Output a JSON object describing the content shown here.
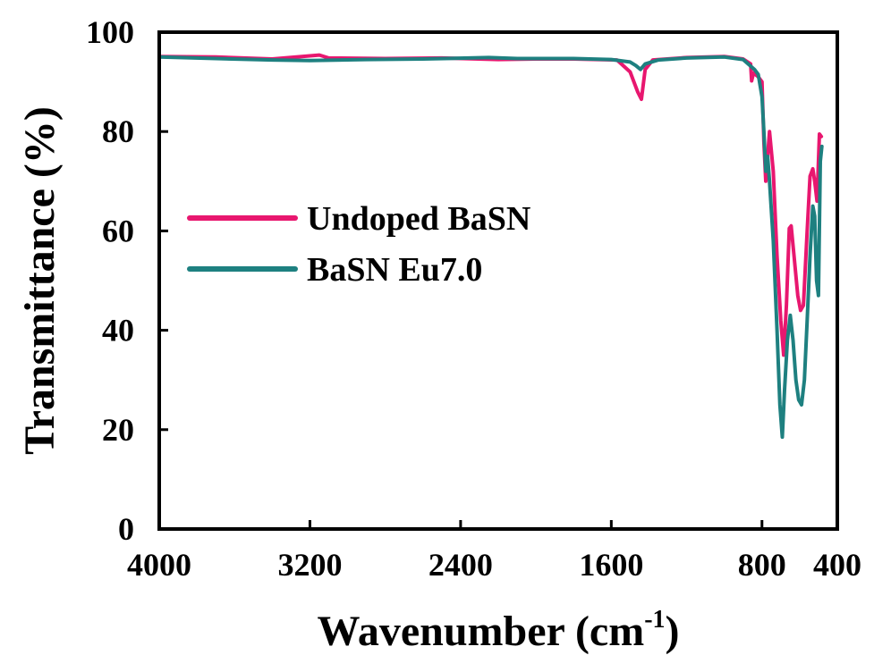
{
  "chart_data": {
    "type": "line",
    "xlabel": "Wavenumber (cm",
    "xlabel_sup": "-1",
    "xlabel_end": ")",
    "ylabel": "Transmittance (%)",
    "xlim": [
      4000,
      400
    ],
    "ylim": [
      0,
      100
    ],
    "x_ticks": [
      4000,
      3200,
      2400,
      1600,
      800,
      400
    ],
    "x_tick_labels": [
      "4000",
      "3200",
      "2400",
      "1600",
      "800",
      "400"
    ],
    "y_ticks": [
      0,
      20,
      40,
      60,
      80,
      100
    ],
    "y_tick_labels": [
      "0",
      "20",
      "40",
      "60",
      "80",
      "100"
    ],
    "legend_position": "center-left",
    "grid": false,
    "series": [
      {
        "name": "Undoped BaSN",
        "color": "#e8176f",
        "points": [
          [
            4000,
            95.1
          ],
          [
            3700,
            95.0
          ],
          [
            3400,
            94.6
          ],
          [
            3150,
            95.4
          ],
          [
            3100,
            94.8
          ],
          [
            2800,
            94.7
          ],
          [
            2500,
            94.8
          ],
          [
            2200,
            94.5
          ],
          [
            2000,
            94.6
          ],
          [
            1800,
            94.6
          ],
          [
            1570,
            94.4
          ],
          [
            1500,
            92.0
          ],
          [
            1460,
            88.0
          ],
          [
            1440,
            86.5
          ],
          [
            1420,
            92.5
          ],
          [
            1380,
            94.4
          ],
          [
            1200,
            94.9
          ],
          [
            1000,
            95.1
          ],
          [
            900,
            94.6
          ],
          [
            860,
            93.6
          ],
          [
            855,
            90.2
          ],
          [
            845,
            91.8
          ],
          [
            820,
            91.0
          ],
          [
            800,
            90.0
          ],
          [
            790,
            78.0
          ],
          [
            780,
            70.0
          ],
          [
            760,
            80.0
          ],
          [
            740,
            72.0
          ],
          [
            720,
            55.0
          ],
          [
            700,
            42.0
          ],
          [
            685,
            35.0
          ],
          [
            670,
            45.0
          ],
          [
            655,
            60.5
          ],
          [
            645,
            61.0
          ],
          [
            630,
            55.0
          ],
          [
            610,
            47.0
          ],
          [
            595,
            44.0
          ],
          [
            580,
            45.0
          ],
          [
            560,
            60.0
          ],
          [
            545,
            71.0
          ],
          [
            530,
            72.5
          ],
          [
            520,
            70.0
          ],
          [
            508,
            66.0
          ],
          [
            495,
            79.5
          ],
          [
            485,
            79.0
          ]
        ]
      },
      {
        "name": "BaSN Eu7.0",
        "color": "#1e8080",
        "points": [
          [
            4000,
            95.0
          ],
          [
            3700,
            94.7
          ],
          [
            3400,
            94.4
          ],
          [
            3200,
            94.3
          ],
          [
            2900,
            94.5
          ],
          [
            2600,
            94.6
          ],
          [
            2250,
            94.9
          ],
          [
            2100,
            94.7
          ],
          [
            1800,
            94.7
          ],
          [
            1600,
            94.5
          ],
          [
            1500,
            94.0
          ],
          [
            1470,
            93.3
          ],
          [
            1445,
            92.5
          ],
          [
            1420,
            93.6
          ],
          [
            1350,
            94.4
          ],
          [
            1200,
            94.8
          ],
          [
            1000,
            95.0
          ],
          [
            900,
            94.5
          ],
          [
            840,
            92.5
          ],
          [
            820,
            91.5
          ],
          [
            800,
            87.0
          ],
          [
            790,
            80.0
          ],
          [
            780,
            72.0
          ],
          [
            770,
            75.0
          ],
          [
            760,
            70.0
          ],
          [
            740,
            58.0
          ],
          [
            720,
            40.0
          ],
          [
            705,
            25.0
          ],
          [
            692,
            18.5
          ],
          [
            680,
            28.0
          ],
          [
            665,
            38.0
          ],
          [
            650,
            43.0
          ],
          [
            635,
            38.0
          ],
          [
            620,
            30.0
          ],
          [
            605,
            26.0
          ],
          [
            590,
            25.0
          ],
          [
            575,
            30.0
          ],
          [
            560,
            42.0
          ],
          [
            545,
            55.0
          ],
          [
            530,
            65.0
          ],
          [
            520,
            63.0
          ],
          [
            510,
            50.0
          ],
          [
            500,
            47.0
          ],
          [
            490,
            74.0
          ],
          [
            482,
            77.0
          ]
        ]
      }
    ]
  }
}
